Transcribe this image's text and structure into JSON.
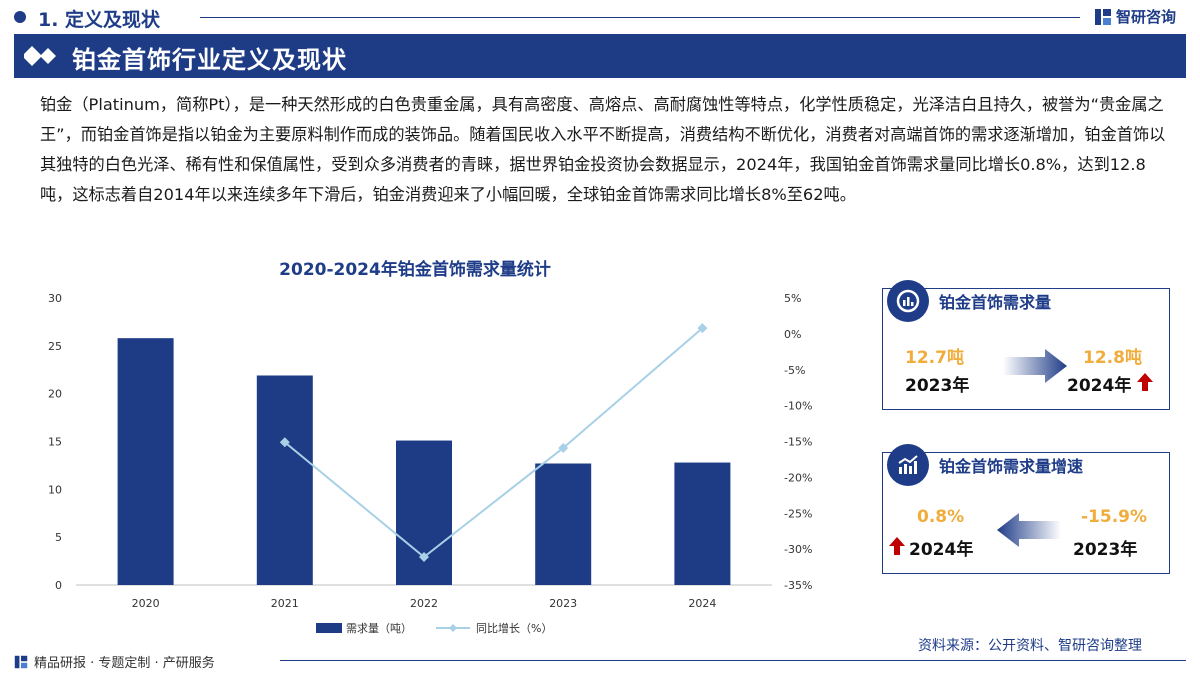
{
  "header": {
    "section_title": "1. 定义及现状",
    "logo_text": "智研咨询"
  },
  "banner": {
    "title": "铂金首饰行业定义及现状"
  },
  "paragraph": "铂金（Platinum，简称Pt），是一种天然形成的白色贵重金属，具有高密度、高熔点、高耐腐蚀性等特点，化学性质稳定，光泽洁白且持久，被誉为“贵金属之王”，而铂金首饰是指以铂金为主要原料制作而成的装饰品。随着国民收入水平不断提高，消费结构不断优化，消费者对高端首饰的需求逐渐增加，铂金首饰以其独特的白色光泽、稀有性和保值属性，受到众多消费者的青睐，据世界铂金投资协会数据显示，2024年，我国铂金首饰需求量同比增长0.8%，达到12.8吨，这标志着自2014年以来连续多年下滑后，铂金消费迎来了小幅回暖，全球铂金首饰需求同比增长8%至62吨。",
  "chart_data": {
    "type": "bar",
    "title": "2020-2024年铂金首饰需求量统计",
    "categories": [
      "2020",
      "2021",
      "2022",
      "2023",
      "2024"
    ],
    "series": [
      {
        "name": "需求量（吨）",
        "type": "bar",
        "axis": "left",
        "values": [
          25.8,
          21.9,
          15.1,
          12.7,
          12.8
        ],
        "color": "#1e3b86"
      },
      {
        "name": "同比增长（%）",
        "type": "line",
        "axis": "right",
        "values": [
          null,
          -15.1,
          -31.1,
          -15.9,
          0.8
        ],
        "color": "#a8d0e6"
      }
    ],
    "y_left": {
      "ylim": [
        0,
        30
      ],
      "ticks": [
        "0",
        "5",
        "10",
        "15",
        "20",
        "25",
        "30"
      ]
    },
    "y_right": {
      "ylim": [
        -35,
        5
      ],
      "ticks": [
        "-35%",
        "-30%",
        "-25%",
        "-20%",
        "-15%",
        "-10%",
        "-5%",
        "0%",
        "5%"
      ]
    },
    "grid": false,
    "legend": "bottom"
  },
  "card_demand": {
    "title": "铂金首饰需求量",
    "prev_value": "12.7吨",
    "prev_year": "2023年",
    "curr_value": "12.8吨",
    "curr_year": "2024年",
    "up_color": "#c00000"
  },
  "card_growth": {
    "title": "铂金首饰需求量增速",
    "curr_value": "0.8%",
    "curr_year": "2024年",
    "prev_value": "-15.9%",
    "prev_year": "2023年"
  },
  "source": "资料来源：公开资料、智研咨询整理",
  "footer": "精品研报 · 专题定制 · 产研服务",
  "colors": {
    "brand": "#1f3c88",
    "accent": "#f0ad3c",
    "bar": "#1e3b86",
    "line": "#a8d0e6"
  }
}
